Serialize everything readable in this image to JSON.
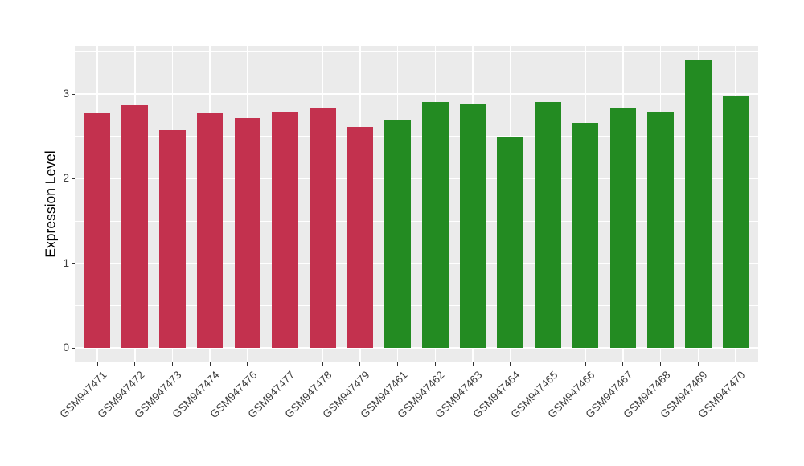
{
  "chart_data": {
    "type": "bar",
    "title": "",
    "xlabel": "",
    "ylabel": "Expression Level",
    "categories": [
      "GSM947471",
      "GSM947472",
      "GSM947473",
      "GSM947474",
      "GSM947476",
      "GSM947477",
      "GSM947478",
      "GSM947479",
      "GSM947461",
      "GSM947462",
      "GSM947463",
      "GSM947464",
      "GSM947465",
      "GSM947466",
      "GSM947467",
      "GSM947468",
      "GSM947469",
      "GSM947470"
    ],
    "values": [
      2.77,
      2.87,
      2.57,
      2.77,
      2.72,
      2.78,
      2.84,
      2.61,
      2.7,
      2.91,
      2.89,
      2.49,
      2.91,
      2.66,
      2.84,
      2.79,
      3.4,
      2.97
    ],
    "bar_groups": [
      "red",
      "red",
      "red",
      "red",
      "red",
      "red",
      "red",
      "red",
      "green",
      "green",
      "green",
      "green",
      "green",
      "green",
      "green",
      "green",
      "green",
      "green"
    ],
    "colors": {
      "red": "#C3314E",
      "green": "#238B22"
    },
    "panel_background": "#EBEBEB",
    "gridline_color": "#FFFFFF",
    "ylim": [
      0,
      3.4
    ],
    "ylim_panel": [
      -0.17,
      3.57
    ],
    "yticks": [
      0,
      1,
      2,
      3
    ],
    "yticks_minor": [
      0.5,
      1.5,
      2.5,
      3.5
    ],
    "x_tick_label_rotation_deg": 45,
    "legend": "none",
    "grid": "white major+minor horizontal lines and major vertical lines at category centers on grey panel"
  }
}
